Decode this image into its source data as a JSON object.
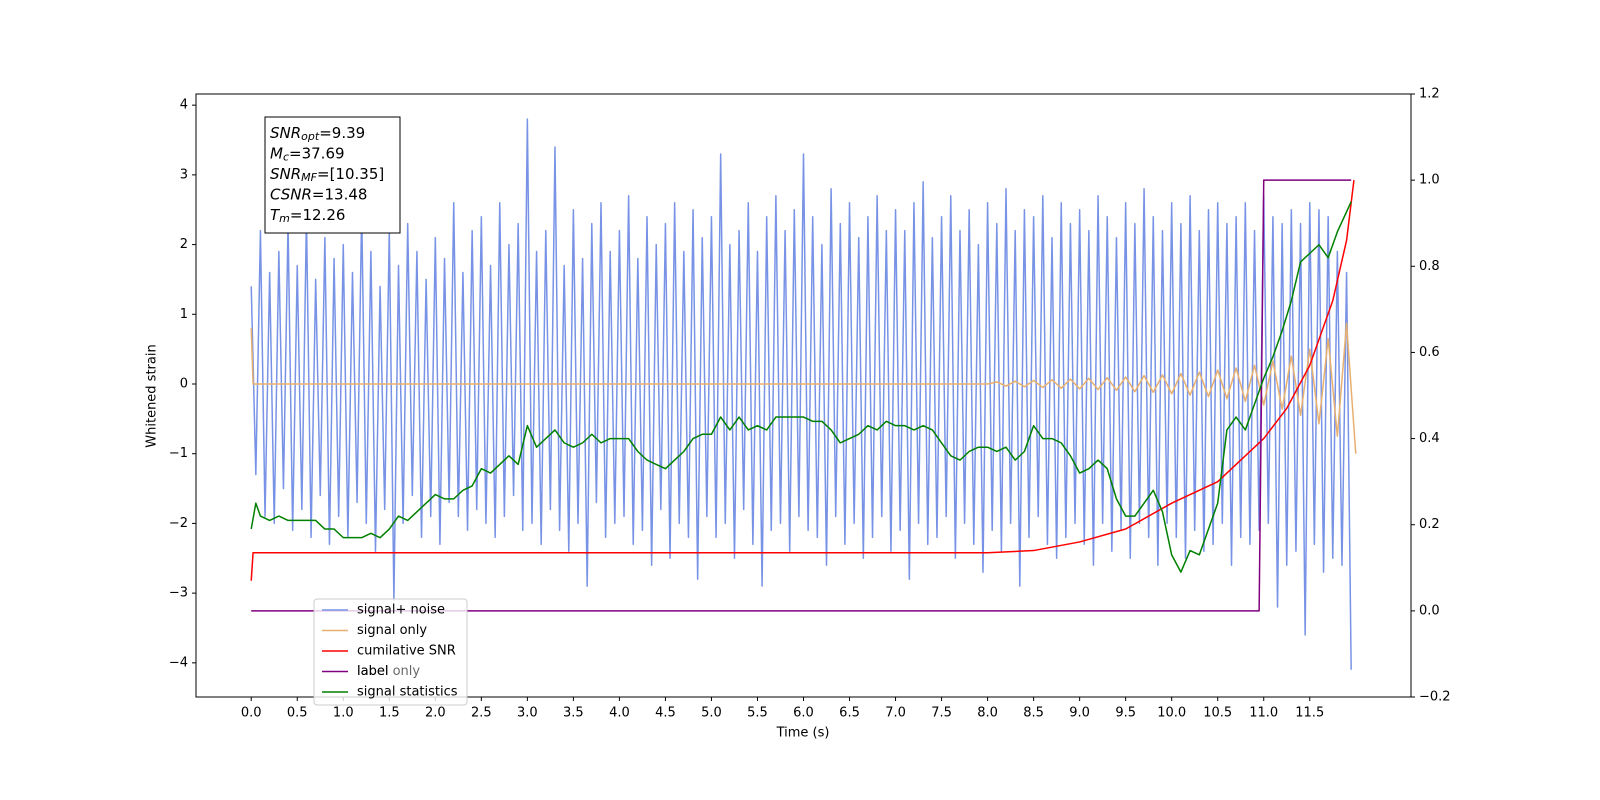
{
  "chart_data": {
    "type": "line",
    "xlabel": "Time (s)",
    "ylabel": "Whitened strain",
    "xlim": [
      -0.6,
      12.6
    ],
    "ylim": [
      -4.49,
      4.16
    ],
    "y2lim": [
      -0.2,
      1.2
    ],
    "xticks": [
      {
        "value": 0,
        "label": "0.0"
      },
      0.5,
      {
        "value": 1,
        "label": "1.0"
      },
      1.5,
      {
        "value": 2,
        "label": "2.0"
      },
      2.5,
      {
        "value": 3,
        "label": "3.0"
      },
      3.5,
      {
        "value": 4,
        "label": "4.0"
      },
      4.5,
      {
        "value": 5,
        "label": "5.0"
      },
      5.5,
      {
        "value": 6,
        "label": "6.0"
      },
      6.5,
      {
        "value": 7,
        "label": "7.0"
      },
      7.5,
      {
        "value": 8,
        "label": "8.0"
      },
      8.5,
      {
        "value": 9,
        "label": "9.0"
      },
      9.5,
      {
        "value": 10,
        "label": "10.0"
      },
      10.5,
      {
        "value": 11,
        "label": "11.0"
      },
      11.5
    ],
    "yticks": [
      {
        "value": -4,
        "label": "−4"
      },
      {
        "value": -3,
        "label": "−3"
      },
      {
        "value": -2,
        "label": "−2"
      },
      {
        "value": -1,
        "label": "−1"
      },
      0,
      1,
      2,
      3,
      4
    ],
    "y2ticks": [
      {
        "value": -0.2,
        "label": "−0.2"
      },
      {
        "value": 0,
        "label": "0.0"
      },
      0.2,
      0.4,
      0.6,
      0.8,
      {
        "value": 1,
        "label": "1.0"
      },
      1.2
    ],
    "textbox": [
      {
        "base": "SNR",
        "sub": "opt",
        "rest": "=9.39"
      },
      {
        "base": "M",
        "sub": "c",
        "rest": "=37.69"
      },
      {
        "base": "SNR",
        "sub": "MF",
        "rest": "=[10.35]"
      },
      {
        "base": "CSNR",
        "rest": "=13.48"
      },
      {
        "base": "T",
        "sub": "m",
        "rest": "=12.26"
      }
    ],
    "legend_overlap_text": "label only",
    "series": [
      {
        "name": "signal+ noise",
        "color": "#7893e6",
        "axis": "y",
        "x": [
          0,
          0.05,
          0.1,
          0.15,
          0.2,
          0.25,
          0.3,
          0.35,
          0.4,
          0.45,
          0.5,
          0.55,
          0.6,
          0.65,
          0.7,
          0.75,
          0.8,
          0.85,
          0.9,
          0.95,
          1,
          1.05,
          1.1,
          1.15,
          1.2,
          1.25,
          1.3,
          1.35,
          1.4,
          1.45,
          1.5,
          1.55,
          1.6,
          1.65,
          1.7,
          1.75,
          1.8,
          1.85,
          1.9,
          1.95,
          2,
          2.05,
          2.1,
          2.15,
          2.2,
          2.25,
          2.3,
          2.35,
          2.4,
          2.45,
          2.5,
          2.55,
          2.6,
          2.65,
          2.7,
          2.75,
          2.8,
          2.85,
          2.9,
          2.95,
          3,
          3.05,
          3.1,
          3.15,
          3.2,
          3.25,
          3.3,
          3.35,
          3.4,
          3.45,
          3.5,
          3.55,
          3.6,
          3.65,
          3.7,
          3.75,
          3.8,
          3.85,
          3.9,
          3.95,
          4,
          4.05,
          4.1,
          4.15,
          4.2,
          4.25,
          4.3,
          4.35,
          4.4,
          4.45,
          4.5,
          4.55,
          4.6,
          4.65,
          4.7,
          4.75,
          4.8,
          4.85,
          4.9,
          4.95,
          5,
          5.05,
          5.1,
          5.15,
          5.2,
          5.25,
          5.3,
          5.35,
          5.4,
          5.45,
          5.5,
          5.55,
          5.6,
          5.65,
          5.7,
          5.75,
          5.8,
          5.85,
          5.9,
          5.95,
          6,
          6.05,
          6.1,
          6.15,
          6.2,
          6.25,
          6.3,
          6.35,
          6.4,
          6.45,
          6.5,
          6.55,
          6.6,
          6.65,
          6.7,
          6.75,
          6.8,
          6.85,
          6.9,
          6.95,
          7,
          7.05,
          7.1,
          7.15,
          7.2,
          7.25,
          7.3,
          7.35,
          7.4,
          7.45,
          7.5,
          7.55,
          7.6,
          7.65,
          7.7,
          7.75,
          7.8,
          7.85,
          7.9,
          7.95,
          8,
          8.05,
          8.1,
          8.15,
          8.2,
          8.25,
          8.3,
          8.35,
          8.4,
          8.45,
          8.5,
          8.55,
          8.6,
          8.65,
          8.7,
          8.75,
          8.8,
          8.85,
          8.9,
          8.95,
          9,
          9.05,
          9.1,
          9.15,
          9.2,
          9.25,
          9.3,
          9.35,
          9.4,
          9.45,
          9.5,
          9.55,
          9.6,
          9.65,
          9.7,
          9.75,
          9.8,
          9.85,
          9.9,
          9.95,
          10,
          10.05,
          10.1,
          10.15,
          10.2,
          10.25,
          10.3,
          10.35,
          10.4,
          10.45,
          10.5,
          10.55,
          10.6,
          10.65,
          10.7,
          10.75,
          10.8,
          10.85,
          10.9,
          10.95,
          11,
          11.05,
          11.1,
          11.15,
          11.2,
          11.25,
          11.3,
          11.35,
          11.4,
          11.45,
          11.5,
          11.55,
          11.6,
          11.65,
          11.7,
          11.75,
          11.8,
          11.85,
          11.9,
          11.95
        ],
        "values": [
          1.4,
          -1.3,
          2.2,
          -1.9,
          1.6,
          -2.0,
          1.9,
          -1.5,
          2.3,
          -2.1,
          1.7,
          -1.8,
          2.4,
          -2.2,
          1.5,
          -1.6,
          2.1,
          -2.3,
          1.8,
          -1.9,
          2.0,
          -2.2,
          1.6,
          -1.7,
          2.5,
          -2.0,
          1.9,
          -2.4,
          1.4,
          -1.8,
          2.2,
          -3.1,
          1.7,
          -2.0,
          2.3,
          -1.6,
          1.9,
          -2.2,
          1.5,
          -1.9,
          2.1,
          -2.3,
          1.8,
          -1.7,
          2.6,
          -1.9,
          1.6,
          -2.1,
          2.2,
          -1.8,
          2.4,
          -2.0,
          1.7,
          -2.2,
          2.6,
          -1.9,
          2.0,
          -1.6,
          2.3,
          -2.1,
          3.8,
          -2.0,
          1.9,
          -2.3,
          2.2,
          -1.8,
          3.4,
          -2.1,
          1.7,
          -2.4,
          2.5,
          -2.0,
          1.8,
          -2.9,
          2.3,
          -1.7,
          2.6,
          -2.2,
          1.9,
          -2.0,
          2.2,
          -1.9,
          2.7,
          -2.3,
          1.8,
          -2.1,
          2.4,
          -2.6,
          2.0,
          -1.8,
          2.3,
          -2.5,
          2.6,
          -2.0,
          1.9,
          -2.2,
          2.5,
          -2.8,
          2.1,
          -1.9,
          2.4,
          -2.2,
          3.3,
          -2.0,
          2.0,
          -2.5,
          2.2,
          -1.8,
          2.6,
          -2.3,
          1.9,
          -2.9,
          2.4,
          -2.1,
          2.7,
          -2.0,
          2.2,
          -2.4,
          2.5,
          -1.9,
          3.3,
          -2.1,
          2.4,
          -2.2,
          2.0,
          -2.6,
          2.8,
          -1.9,
          2.3,
          -2.3,
          2.6,
          -2.0,
          2.1,
          -2.5,
          2.4,
          -2.2,
          2.7,
          -1.9,
          2.2,
          -2.4,
          2.5,
          -2.1,
          2.2,
          -2.8,
          2.6,
          -2.0,
          2.9,
          -2.3,
          2.1,
          -2.2,
          2.4,
          -1.9,
          2.7,
          -2.5,
          2.2,
          -2.0,
          2.5,
          -2.3,
          2.0,
          -2.7,
          2.6,
          -2.1,
          2.3,
          -2.4,
          2.8,
          -2.0,
          2.2,
          -2.9,
          2.5,
          -2.2,
          2.4,
          -1.9,
          2.7,
          -2.3,
          2.1,
          -2.5,
          2.6,
          -2.2,
          2.3,
          -2.0,
          2.5,
          -2.3,
          2.2,
          -2.6,
          2.7,
          -2.0,
          2.4,
          -2.4,
          2.1,
          -2.1,
          2.6,
          -2.5,
          2.3,
          -2.0,
          2.8,
          -2.2,
          2.4,
          -2.6,
          2.2,
          -2.0,
          2.6,
          -2.2,
          2.3,
          -2.5,
          2.7,
          -2.1,
          2.2,
          -2.4,
          2.5,
          -2.3,
          2.6,
          -2.0,
          2.3,
          -2.6,
          2.4,
          -2.2,
          2.6,
          -2.3,
          2.2,
          -2.1,
          2.7,
          -2.0,
          2.4,
          -3.2,
          2.3,
          -2.6,
          2.5,
          -2.4,
          2.3,
          -3.6,
          2.6,
          -2.3,
          2.5,
          -2.7,
          2.4,
          -2.5,
          1.9,
          -2.6,
          1.6,
          -4.1
        ]
      },
      {
        "name": "signal only",
        "color": "#e8b070",
        "axis": "y",
        "x": [
          0,
          0.02,
          8,
          8.1,
          8.2,
          8.3,
          8.4,
          8.5,
          8.6,
          8.7,
          8.8,
          8.9,
          9,
          9.1,
          9.2,
          9.3,
          9.4,
          9.5,
          9.6,
          9.7,
          9.8,
          9.9,
          10,
          10.1,
          10.2,
          10.3,
          10.4,
          10.5,
          10.6,
          10.7,
          10.8,
          10.9,
          11,
          11.1,
          11.2,
          11.3,
          11.4,
          11.5,
          11.6,
          11.7,
          11.8,
          11.9,
          12
        ],
        "values": [
          0.8,
          0,
          0,
          0.03,
          -0.03,
          0.04,
          -0.04,
          0.05,
          -0.05,
          0.06,
          -0.06,
          0.07,
          -0.07,
          0.08,
          -0.08,
          0.09,
          -0.09,
          0.1,
          -0.11,
          0.12,
          -0.12,
          0.13,
          -0.14,
          0.15,
          -0.16,
          0.17,
          -0.18,
          0.2,
          -0.21,
          0.23,
          -0.25,
          0.27,
          -0.3,
          0.33,
          -0.36,
          0.4,
          -0.45,
          0.5,
          -0.57,
          0.65,
          -0.75,
          0.87,
          -1.0
        ]
      },
      {
        "name": "cumilative SNR",
        "color": "#ff0000",
        "axis": "y2",
        "x": [
          0,
          0.02,
          8,
          8.5,
          9,
          9.5,
          10,
          10.5,
          11,
          11.25,
          11.5,
          11.75,
          11.9,
          11.98
        ],
        "values": [
          0.07,
          0.135,
          0.135,
          0.14,
          0.16,
          0.19,
          0.25,
          0.3,
          0.4,
          0.47,
          0.57,
          0.72,
          0.86,
          1.0
        ]
      },
      {
        "name": "label",
        "color": "#800080",
        "axis": "y2",
        "x": [
          0,
          10.95,
          11,
          11.95
        ],
        "values": [
          0,
          0,
          1,
          1
        ]
      },
      {
        "name": "signal statistics",
        "color": "#008000",
        "axis": "y2",
        "x": [
          0,
          0.05,
          0.1,
          0.2,
          0.3,
          0.4,
          0.5,
          0.6,
          0.7,
          0.8,
          0.9,
          1,
          1.1,
          1.2,
          1.3,
          1.4,
          1.5,
          1.6,
          1.7,
          1.8,
          1.9,
          2,
          2.1,
          2.2,
          2.3,
          2.4,
          2.5,
          2.6,
          2.7,
          2.8,
          2.9,
          3,
          3.1,
          3.2,
          3.3,
          3.4,
          3.5,
          3.6,
          3.7,
          3.8,
          3.9,
          4,
          4.1,
          4.2,
          4.3,
          4.4,
          4.5,
          4.6,
          4.7,
          4.8,
          4.9,
          5,
          5.1,
          5.2,
          5.3,
          5.4,
          5.5,
          5.6,
          5.7,
          5.8,
          5.9,
          6,
          6.1,
          6.2,
          6.3,
          6.4,
          6.5,
          6.6,
          6.7,
          6.8,
          6.9,
          7,
          7.1,
          7.2,
          7.3,
          7.4,
          7.5,
          7.6,
          7.7,
          7.8,
          7.9,
          8,
          8.1,
          8.2,
          8.3,
          8.4,
          8.5,
          8.6,
          8.7,
          8.8,
          8.9,
          9,
          9.1,
          9.2,
          9.3,
          9.4,
          9.5,
          9.6,
          9.7,
          9.8,
          9.9,
          10,
          10.1,
          10.2,
          10.3,
          10.5,
          10.6,
          10.7,
          10.8,
          10.9,
          11,
          11.1,
          11.2,
          11.3,
          11.4,
          11.5,
          11.6,
          11.7,
          11.8,
          11.95
        ],
        "values": [
          0.19,
          0.25,
          0.22,
          0.21,
          0.22,
          0.21,
          0.21,
          0.21,
          0.21,
          0.19,
          0.19,
          0.17,
          0.17,
          0.17,
          0.18,
          0.17,
          0.19,
          0.22,
          0.21,
          0.23,
          0.25,
          0.27,
          0.26,
          0.26,
          0.28,
          0.29,
          0.33,
          0.32,
          0.34,
          0.36,
          0.34,
          0.43,
          0.38,
          0.4,
          0.42,
          0.39,
          0.38,
          0.39,
          0.41,
          0.39,
          0.4,
          0.4,
          0.4,
          0.37,
          0.35,
          0.34,
          0.33,
          0.35,
          0.37,
          0.4,
          0.41,
          0.41,
          0.45,
          0.42,
          0.45,
          0.42,
          0.43,
          0.42,
          0.45,
          0.45,
          0.45,
          0.45,
          0.44,
          0.44,
          0.42,
          0.39,
          0.4,
          0.41,
          0.43,
          0.42,
          0.44,
          0.43,
          0.43,
          0.42,
          0.43,
          0.42,
          0.39,
          0.36,
          0.35,
          0.37,
          0.38,
          0.38,
          0.37,
          0.38,
          0.35,
          0.37,
          0.43,
          0.4,
          0.4,
          0.39,
          0.36,
          0.32,
          0.33,
          0.35,
          0.33,
          0.26,
          0.22,
          0.22,
          0.25,
          0.28,
          0.23,
          0.13,
          0.09,
          0.14,
          0.13,
          0.25,
          0.42,
          0.45,
          0.42,
          0.48,
          0.54,
          0.59,
          0.65,
          0.72,
          0.81,
          0.83,
          0.85,
          0.82,
          0.88,
          0.95
        ]
      }
    ]
  }
}
